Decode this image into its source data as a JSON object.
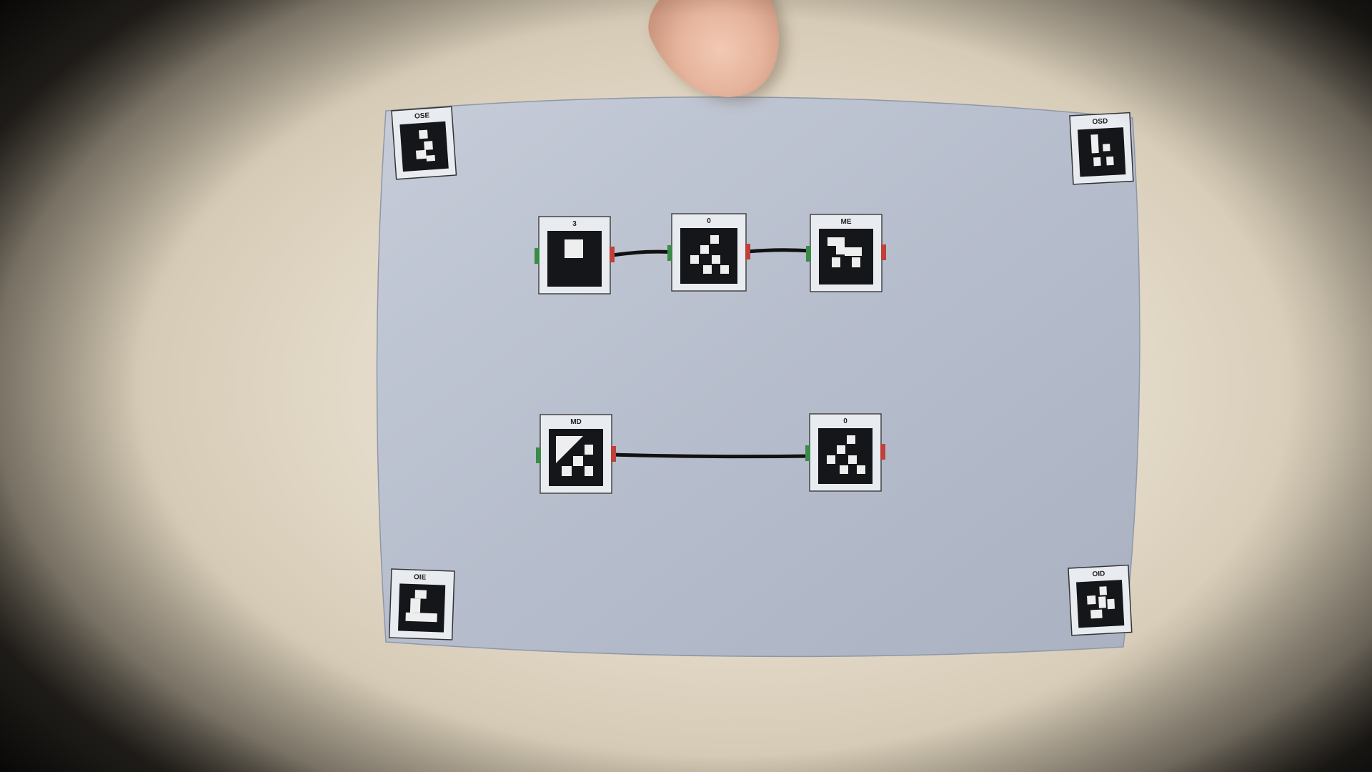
{
  "scene": {
    "subject": "sheet",
    "corner_markers": [
      {
        "id": "marker-top-left",
        "label": "OSE"
      },
      {
        "id": "marker-top-right",
        "label": "OSD"
      },
      {
        "id": "marker-bottom-left",
        "label": "OIE"
      },
      {
        "id": "marker-bottom-right",
        "label": "OID"
      }
    ],
    "blocks": [
      {
        "id": "block-1",
        "label": "3"
      },
      {
        "id": "block-2",
        "label": "0"
      },
      {
        "id": "block-3",
        "label": "ME"
      },
      {
        "id": "block-4",
        "label": "MD"
      },
      {
        "id": "block-5",
        "label": "0"
      }
    ],
    "colors": {
      "paper": "#b9c0cf",
      "marker_black": "#15161a",
      "port_green": "#3a8a4a",
      "port_red": "#c0403a",
      "wire": "#111111"
    }
  }
}
